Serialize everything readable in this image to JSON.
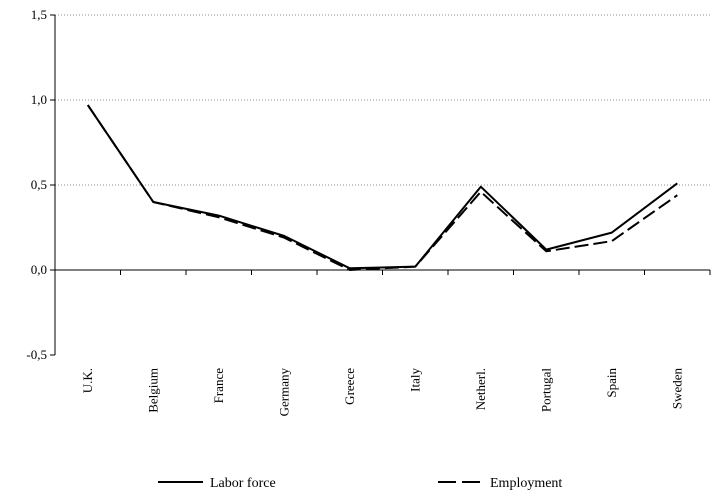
{
  "chart_data": {
    "type": "line",
    "categories": [
      "U.K.",
      "Belgium",
      "France",
      "Germany",
      "Greece",
      "Italy",
      "Netherl.",
      "Portugal",
      "Spain",
      "Sweden"
    ],
    "series": [
      {
        "name": "Labor force",
        "values": [
          0.97,
          0.4,
          0.32,
          0.2,
          0.01,
          0.02,
          0.49,
          0.12,
          0.22,
          0.51
        ],
        "style": "solid",
        "color": "#000000"
      },
      {
        "name": "Employment",
        "values": [
          0.97,
          0.4,
          0.31,
          0.19,
          0.0,
          0.02,
          0.46,
          0.11,
          0.17,
          0.44
        ],
        "style": "dashed",
        "color": "#000000"
      }
    ],
    "ylim": [
      -0.5,
      1.5
    ],
    "yticks": [
      "-0,5",
      "0,0",
      "0,5",
      "1,0",
      "1,5"
    ],
    "yticks_values": [
      -0.5,
      0.0,
      0.5,
      1.0,
      1.5
    ],
    "gridlines_at": [
      0.5,
      1.0,
      1.5
    ],
    "legend_position": "bottom",
    "title": "",
    "xlabel": "",
    "ylabel": ""
  }
}
